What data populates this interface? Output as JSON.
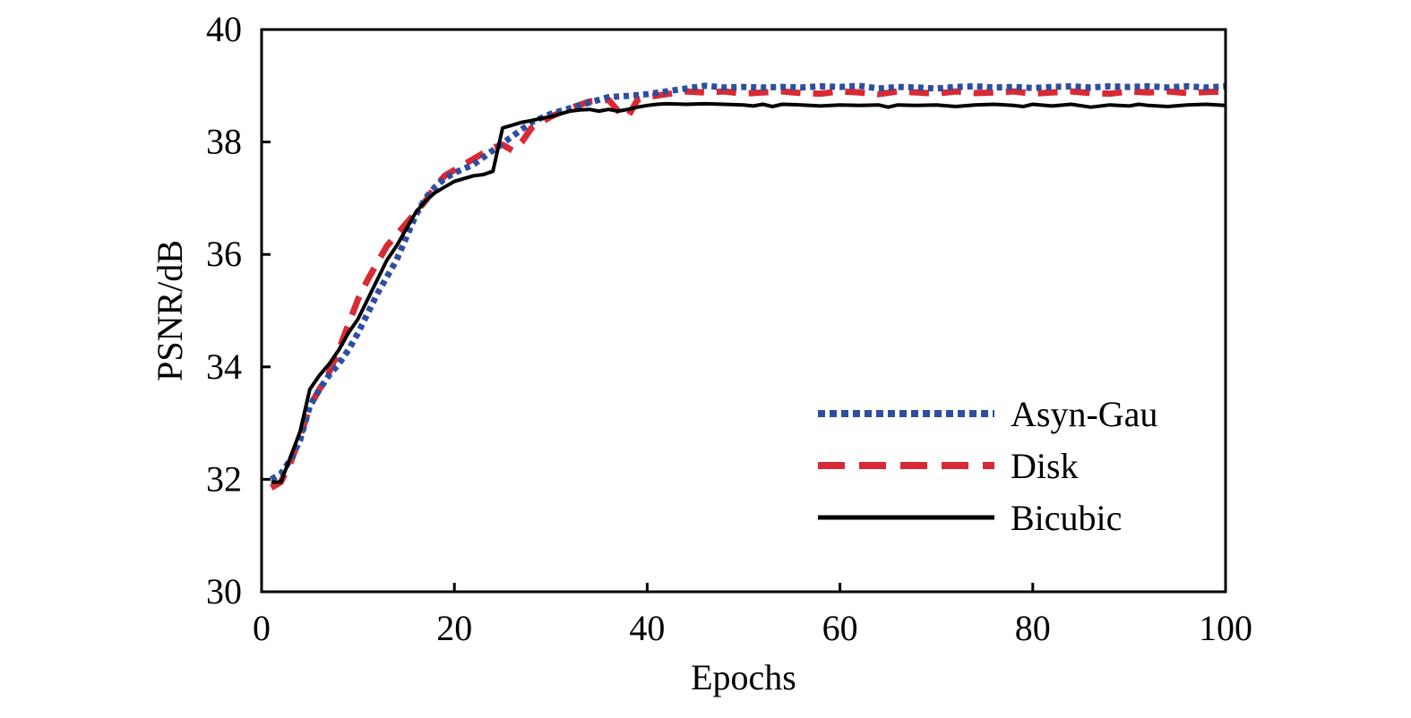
{
  "chart_data": {
    "type": "line",
    "title": "",
    "xlabel": "Epochs",
    "ylabel": "PSNR/dB",
    "xlim": [
      0,
      100
    ],
    "ylim": [
      30,
      40
    ],
    "xticks": [
      0,
      20,
      40,
      60,
      80,
      100
    ],
    "yticks": [
      30,
      32,
      34,
      36,
      38,
      40
    ],
    "grid": false,
    "legend_position": "bottom-right",
    "series": [
      {
        "name": "Asyn-Gau",
        "color": "#2e4ea0",
        "style": "dotted",
        "points": [
          [
            1,
            32.0
          ],
          [
            2,
            32.1
          ],
          [
            3,
            32.35
          ],
          [
            4,
            32.7
          ],
          [
            5,
            33.3
          ],
          [
            6,
            33.6
          ],
          [
            7,
            33.85
          ],
          [
            8,
            34.05
          ],
          [
            9,
            34.3
          ],
          [
            10,
            34.6
          ],
          [
            11,
            34.95
          ],
          [
            12,
            35.3
          ],
          [
            13,
            35.6
          ],
          [
            14,
            35.9
          ],
          [
            15,
            36.3
          ],
          [
            16,
            36.7
          ],
          [
            17,
            37.0
          ],
          [
            18,
            37.2
          ],
          [
            19,
            37.35
          ],
          [
            20,
            37.45
          ],
          [
            22,
            37.6
          ],
          [
            24,
            37.85
          ],
          [
            26,
            38.1
          ],
          [
            28,
            38.35
          ],
          [
            30,
            38.5
          ],
          [
            32,
            38.6
          ],
          [
            34,
            38.7
          ],
          [
            36,
            38.8
          ],
          [
            38,
            38.82
          ],
          [
            40,
            38.85
          ],
          [
            42,
            38.9
          ],
          [
            44,
            38.95
          ],
          [
            46,
            39.0
          ],
          [
            48,
            38.97
          ],
          [
            50,
            38.98
          ],
          [
            52,
            38.97
          ],
          [
            54,
            38.98
          ],
          [
            56,
            38.97
          ],
          [
            58,
            38.99
          ],
          [
            60,
            38.98
          ],
          [
            62,
            39.0
          ],
          [
            64,
            38.95
          ],
          [
            66,
            38.98
          ],
          [
            68,
            38.97
          ],
          [
            70,
            38.95
          ],
          [
            72,
            38.98
          ],
          [
            74,
            38.99
          ],
          [
            76,
            38.97
          ],
          [
            78,
            38.98
          ],
          [
            80,
            38.96
          ],
          [
            82,
            38.98
          ],
          [
            84,
            38.99
          ],
          [
            86,
            38.97
          ],
          [
            88,
            38.99
          ],
          [
            90,
            38.98
          ],
          [
            92,
            38.99
          ],
          [
            94,
            38.97
          ],
          [
            96,
            38.99
          ],
          [
            98,
            38.97
          ],
          [
            100,
            38.99
          ]
        ]
      },
      {
        "name": "Disk",
        "color": "#d92a34",
        "style": "dashed",
        "points": [
          [
            1,
            31.85
          ],
          [
            2,
            31.95
          ],
          [
            3,
            32.3
          ],
          [
            4,
            32.75
          ],
          [
            5,
            33.3
          ],
          [
            6,
            33.6
          ],
          [
            7,
            33.9
          ],
          [
            8,
            34.3
          ],
          [
            9,
            34.75
          ],
          [
            10,
            35.2
          ],
          [
            11,
            35.55
          ],
          [
            12,
            35.85
          ],
          [
            13,
            36.15
          ],
          [
            14,
            36.35
          ],
          [
            15,
            36.55
          ],
          [
            16,
            36.75
          ],
          [
            17,
            36.95
          ],
          [
            18,
            37.2
          ],
          [
            19,
            37.4
          ],
          [
            20,
            37.5
          ],
          [
            22,
            37.7
          ],
          [
            24,
            37.9
          ],
          [
            25,
            37.95
          ],
          [
            26,
            37.85
          ],
          [
            27,
            38.0
          ],
          [
            28,
            38.25
          ],
          [
            30,
            38.45
          ],
          [
            32,
            38.6
          ],
          [
            34,
            38.72
          ],
          [
            36,
            38.75
          ],
          [
            37,
            38.55
          ],
          [
            38,
            38.45
          ],
          [
            39,
            38.75
          ],
          [
            40,
            38.8
          ],
          [
            42,
            38.85
          ],
          [
            44,
            38.9
          ],
          [
            46,
            38.88
          ],
          [
            48,
            38.9
          ],
          [
            50,
            38.86
          ],
          [
            52,
            38.88
          ],
          [
            54,
            38.9
          ],
          [
            56,
            38.87
          ],
          [
            58,
            38.86
          ],
          [
            60,
            38.9
          ],
          [
            62,
            38.88
          ],
          [
            64,
            38.85
          ],
          [
            66,
            38.9
          ],
          [
            68,
            38.88
          ],
          [
            70,
            38.86
          ],
          [
            72,
            38.9
          ],
          [
            74,
            38.87
          ],
          [
            76,
            38.88
          ],
          [
            78,
            38.9
          ],
          [
            80,
            38.86
          ],
          [
            82,
            38.88
          ],
          [
            84,
            38.9
          ],
          [
            86,
            38.87
          ],
          [
            88,
            38.86
          ],
          [
            90,
            38.9
          ],
          [
            92,
            38.88
          ],
          [
            94,
            38.9
          ],
          [
            96,
            38.87
          ],
          [
            98,
            38.89
          ],
          [
            100,
            38.9
          ]
        ]
      },
      {
        "name": "Bicubic",
        "color": "#000000",
        "style": "solid",
        "points": [
          [
            1,
            31.95
          ],
          [
            2,
            31.95
          ],
          [
            3,
            32.4
          ],
          [
            4,
            32.85
          ],
          [
            5,
            33.6
          ],
          [
            6,
            33.85
          ],
          [
            7,
            34.05
          ],
          [
            8,
            34.3
          ],
          [
            9,
            34.6
          ],
          [
            10,
            34.85
          ],
          [
            11,
            35.2
          ],
          [
            12,
            35.55
          ],
          [
            13,
            35.9
          ],
          [
            14,
            36.15
          ],
          [
            15,
            36.45
          ],
          [
            16,
            36.75
          ],
          [
            17,
            36.95
          ],
          [
            18,
            37.1
          ],
          [
            19,
            37.2
          ],
          [
            20,
            37.3
          ],
          [
            21,
            37.35
          ],
          [
            22,
            37.4
          ],
          [
            23,
            37.42
          ],
          [
            24,
            37.48
          ],
          [
            25,
            38.25
          ],
          [
            26,
            38.3
          ],
          [
            27,
            38.35
          ],
          [
            28,
            38.38
          ],
          [
            29,
            38.42
          ],
          [
            30,
            38.45
          ],
          [
            31,
            38.5
          ],
          [
            32,
            38.55
          ],
          [
            33,
            38.57
          ],
          [
            34,
            38.58
          ],
          [
            35,
            38.55
          ],
          [
            36,
            38.58
          ],
          [
            37,
            38.55
          ],
          [
            38,
            38.58
          ],
          [
            39,
            38.62
          ],
          [
            40,
            38.65
          ],
          [
            41,
            38.67
          ],
          [
            42,
            38.68
          ],
          [
            44,
            38.67
          ],
          [
            46,
            38.68
          ],
          [
            48,
            38.67
          ],
          [
            50,
            38.66
          ],
          [
            51,
            38.64
          ],
          [
            52,
            38.67
          ],
          [
            53,
            38.63
          ],
          [
            54,
            38.67
          ],
          [
            56,
            38.66
          ],
          [
            58,
            38.64
          ],
          [
            60,
            38.66
          ],
          [
            62,
            38.65
          ],
          [
            64,
            38.66
          ],
          [
            65,
            38.62
          ],
          [
            66,
            38.66
          ],
          [
            68,
            38.65
          ],
          [
            70,
            38.66
          ],
          [
            72,
            38.63
          ],
          [
            74,
            38.66
          ],
          [
            76,
            38.67
          ],
          [
            78,
            38.65
          ],
          [
            79,
            38.63
          ],
          [
            80,
            38.67
          ],
          [
            82,
            38.64
          ],
          [
            84,
            38.67
          ],
          [
            86,
            38.62
          ],
          [
            88,
            38.66
          ],
          [
            90,
            38.64
          ],
          [
            91,
            38.67
          ],
          [
            92,
            38.65
          ],
          [
            94,
            38.63
          ],
          [
            96,
            38.66
          ],
          [
            98,
            38.67
          ],
          [
            100,
            38.65
          ]
        ]
      }
    ]
  }
}
